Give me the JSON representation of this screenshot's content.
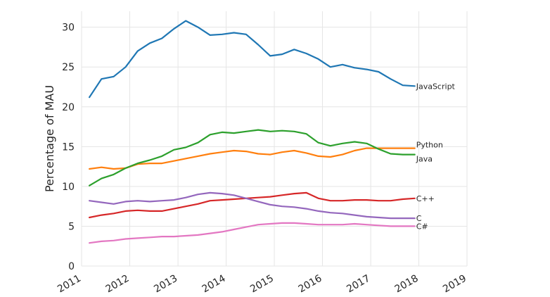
{
  "chart_data": {
    "type": "line",
    "title": "",
    "xlabel": "",
    "ylabel": "Percentage of MAU",
    "xlim": [
      "2011-01-01",
      "2019-01-01"
    ],
    "ylim": [
      0,
      32
    ],
    "grid": true,
    "legend": "direct labels at line ends",
    "x_ticks": [
      "2011",
      "2012",
      "2013",
      "2014",
      "2015",
      "2016",
      "2017",
      "2018",
      "2019"
    ],
    "y_ticks": [
      "0",
      "5",
      "10",
      "15",
      "20",
      "25",
      "30"
    ],
    "x": [
      "2011-03-01",
      "2011-06-01",
      "2011-09-01",
      "2011-12-01",
      "2012-03-01",
      "2012-06-01",
      "2012-09-01",
      "2012-12-01",
      "2013-03-01",
      "2013-06-01",
      "2013-09-01",
      "2013-12-01",
      "2014-03-01",
      "2014-06-01",
      "2014-09-01",
      "2014-12-01",
      "2015-03-01",
      "2015-06-01",
      "2015-09-01",
      "2015-12-01",
      "2016-03-01",
      "2016-06-01",
      "2016-09-01",
      "2016-12-01",
      "2017-03-01",
      "2017-06-01",
      "2017-09-01",
      "2017-12-01"
    ],
    "series": [
      {
        "name": "JavaScript",
        "color": "#1f77b4",
        "values": [
          21.2,
          23.5,
          23.8,
          25.0,
          27.0,
          28.0,
          28.6,
          29.8,
          30.8,
          30.0,
          29.0,
          29.1,
          29.3,
          29.1,
          27.8,
          26.4,
          26.6,
          27.2,
          26.7,
          26.0,
          25.0,
          25.3,
          24.9,
          24.7,
          24.4,
          23.5,
          22.7,
          22.6
        ]
      },
      {
        "name": "Python",
        "color": "#ff7f0e",
        "values": [
          12.2,
          12.4,
          12.2,
          12.3,
          12.8,
          12.9,
          12.9,
          13.2,
          13.5,
          13.8,
          14.1,
          14.3,
          14.5,
          14.4,
          14.1,
          14.0,
          14.3,
          14.5,
          14.2,
          13.8,
          13.7,
          14.0,
          14.5,
          14.8,
          14.8,
          14.8,
          14.8,
          14.8
        ]
      },
      {
        "name": "Java",
        "color": "#2ca02c",
        "values": [
          10.1,
          11.0,
          11.5,
          12.3,
          12.9,
          13.3,
          13.8,
          14.6,
          14.9,
          15.5,
          16.5,
          16.8,
          16.7,
          16.9,
          17.1,
          16.9,
          17.0,
          16.9,
          16.6,
          15.5,
          15.1,
          15.4,
          15.6,
          15.4,
          14.7,
          14.1,
          14.0,
          14.0
        ]
      },
      {
        "name": "C++",
        "color": "#d62728",
        "values": [
          6.1,
          6.4,
          6.6,
          6.9,
          7.0,
          6.9,
          6.9,
          7.2,
          7.5,
          7.8,
          8.2,
          8.3,
          8.4,
          8.5,
          8.6,
          8.7,
          8.9,
          9.1,
          9.2,
          8.5,
          8.2,
          8.2,
          8.3,
          8.3,
          8.2,
          8.2,
          8.4,
          8.5
        ]
      },
      {
        "name": "C",
        "color": "#9467bd",
        "values": [
          8.2,
          8.0,
          7.8,
          8.1,
          8.2,
          8.1,
          8.2,
          8.3,
          8.6,
          9.0,
          9.2,
          9.1,
          8.9,
          8.5,
          8.1,
          7.7,
          7.5,
          7.4,
          7.2,
          6.9,
          6.7,
          6.6,
          6.4,
          6.2,
          6.1,
          6.0,
          6.0,
          6.0
        ]
      },
      {
        "name": "C#",
        "color": "#e377c2",
        "values": [
          2.9,
          3.1,
          3.2,
          3.4,
          3.5,
          3.6,
          3.7,
          3.7,
          3.8,
          3.9,
          4.1,
          4.3,
          4.6,
          4.9,
          5.2,
          5.3,
          5.4,
          5.4,
          5.3,
          5.2,
          5.2,
          5.2,
          5.3,
          5.2,
          5.1,
          5.0,
          5.0,
          5.0
        ]
      }
    ]
  }
}
